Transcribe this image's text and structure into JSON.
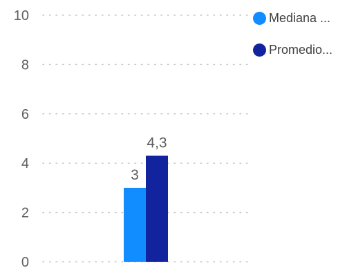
{
  "chart_data": {
    "type": "bar",
    "categories": [
      ""
    ],
    "series": [
      {
        "name": "Mediana ...",
        "values": [
          3
        ],
        "label": "3",
        "color": "#118dff"
      },
      {
        "name": "Promedio...",
        "values": [
          4.3
        ],
        "label": "4,3",
        "color": "#12239e"
      }
    ],
    "ylim": [
      0,
      10
    ],
    "y_ticks": [
      {
        "value": 0,
        "label": "0"
      },
      {
        "value": 2,
        "label": "2"
      },
      {
        "value": 4,
        "label": "4"
      },
      {
        "value": 6,
        "label": "6"
      },
      {
        "value": 8,
        "label": "8"
      },
      {
        "value": 10,
        "label": "10"
      }
    ],
    "grid": true,
    "grid_style": "dotted",
    "legend_position": "top-right",
    "title": "",
    "xlabel": "",
    "ylabel": ""
  }
}
